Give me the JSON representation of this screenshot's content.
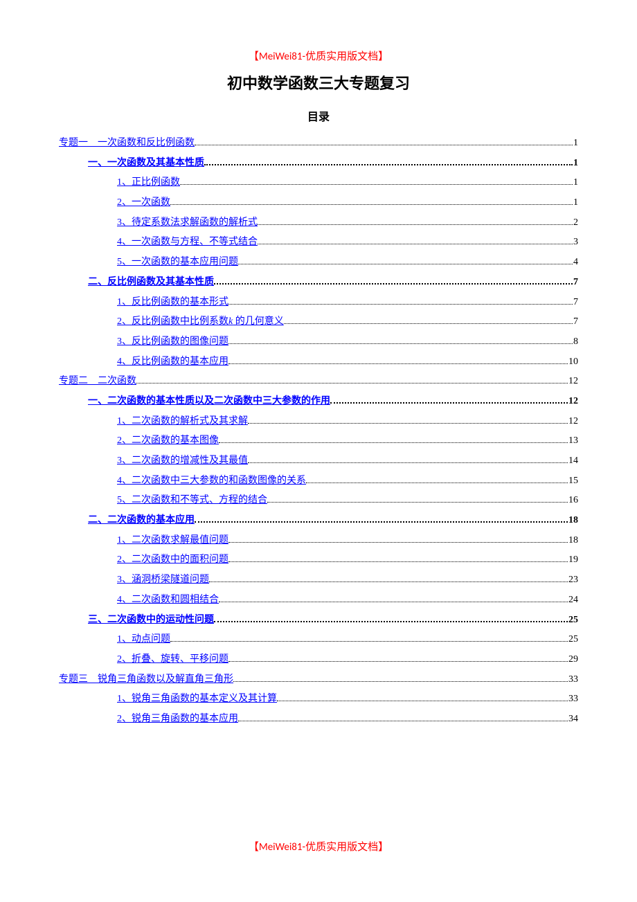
{
  "header_tag": "【MeiWei81-优质实用版文档】",
  "main_title": "初中数学函数三大专题复习",
  "toc_title": "目录",
  "footer_tag": "【MeiWei81-优质实用版文档】",
  "entries": [
    {
      "level": 0,
      "label": "专题一　一次函数和反比例函数",
      "page": "1"
    },
    {
      "level": 1,
      "label": "一、一次函数及其基本性质",
      "page": "1"
    },
    {
      "level": 2,
      "label": "1、正比例函数",
      "page": "1"
    },
    {
      "level": 2,
      "label": "2、一次函数",
      "page": "1"
    },
    {
      "level": 2,
      "label": "3、待定系数法求解函数的解析式",
      "page": "2"
    },
    {
      "level": 2,
      "label": "4、一次函数与方程、不等式结合",
      "page": "3"
    },
    {
      "level": 2,
      "label": "5、一次函数的基本应用问题",
      "page": "4"
    },
    {
      "level": 1,
      "label": "二、反比例函数及其基本性质",
      "page": "7"
    },
    {
      "level": 2,
      "label": "1、反比例函数的基本形式",
      "page": "7"
    },
    {
      "level": 2,
      "label_pre": "2、反比例函数中比例系数",
      "label_italic": "k",
      "label_post": " 的几何意义",
      "page": "7"
    },
    {
      "level": 2,
      "label": "3、反比例函数的图像问题",
      "page": "8"
    },
    {
      "level": 2,
      "label": "4、反比例函数的基本应用",
      "page": "10"
    },
    {
      "level": 0,
      "label": "专题二　二次函数",
      "page": "12"
    },
    {
      "level": 1,
      "label": "一、二次函数的基本性质以及二次函数中三大参数的作用",
      "page": "12"
    },
    {
      "level": 2,
      "label": "1、二次函数的解析式及其求解",
      "page": "12"
    },
    {
      "level": 2,
      "label": "2、二次函数的基本图像",
      "page": "13"
    },
    {
      "level": 2,
      "label": "3、二次函数的增减性及其最值",
      "page": "14"
    },
    {
      "level": 2,
      "label": "4、二次函数中三大参数的和函数图像的关系",
      "page": "15"
    },
    {
      "level": 2,
      "label": "5、二次函数和不等式、方程的结合",
      "page": "16"
    },
    {
      "level": 1,
      "label": "二、二次函数的基本应用",
      "page": "18"
    },
    {
      "level": 2,
      "label": "1、二次函数求解最值问题",
      "page": "18"
    },
    {
      "level": 2,
      "label": "2、二次函数中的面积问题",
      "page": "19"
    },
    {
      "level": 2,
      "label": "3、涵洞桥梁隧道问题",
      "page": "23"
    },
    {
      "level": 2,
      "label": "4、二次函数和圆相结合",
      "page": "24"
    },
    {
      "level": 1,
      "label": "三、二次函数中的运动性问题",
      "page": "25"
    },
    {
      "level": 2,
      "label": "1、动点问题",
      "page": "25"
    },
    {
      "level": 2,
      "label": "2、折叠、旋转、平移问题",
      "page": "29"
    },
    {
      "level": 0,
      "label": "专题三　锐角三角函数以及解直角三角形",
      "page": "33"
    },
    {
      "level": 2,
      "label": "1、锐角三角函数的基本定义及其计算",
      "page": "33"
    },
    {
      "level": 2,
      "label": "2、锐角三角函数的基本应用",
      "page": "34"
    }
  ]
}
